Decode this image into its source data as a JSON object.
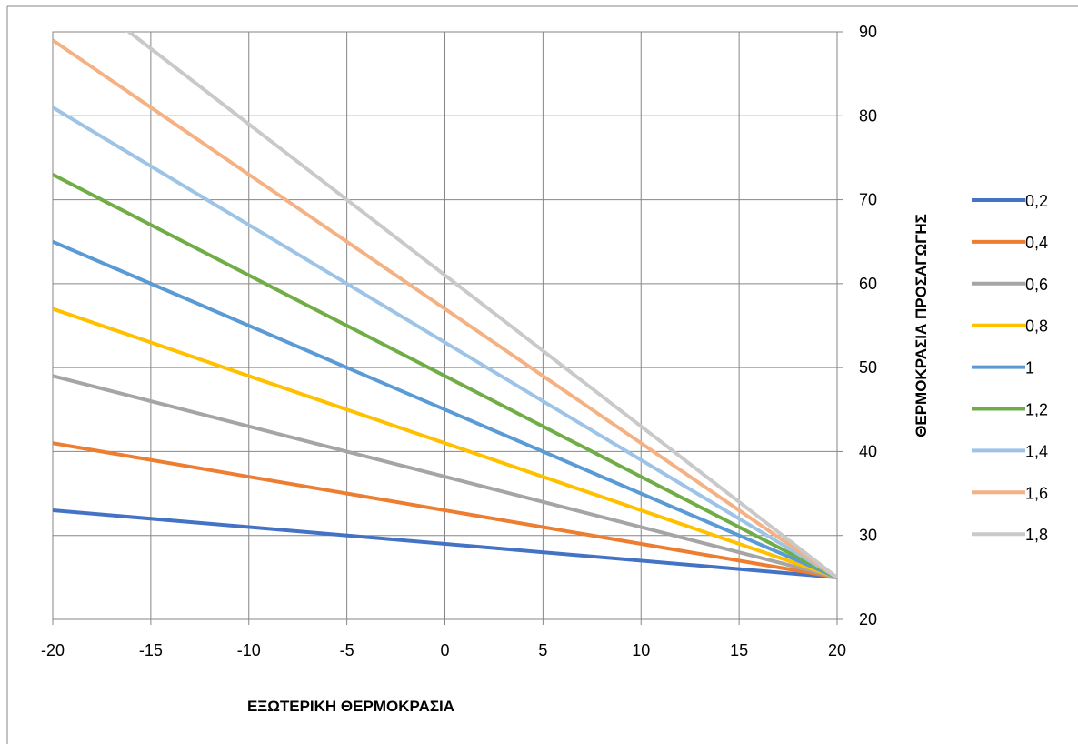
{
  "chart_data": {
    "type": "line",
    "title": "",
    "xlabel": "ΕΞΩΤΕΡΙΚΗ ΘΕΡΜΟΚΡΑΣΙΑ",
    "ylabel": "ΘΕΡΜΟΚΡΑΣΙΑ ΠΡΟΣΑΓΩΓΗΣ",
    "xlim": [
      -20,
      20
    ],
    "ylim": [
      20,
      90
    ],
    "xticks": [
      "-20",
      "-15",
      "-10",
      "-5",
      "0",
      "5",
      "10",
      "15",
      "20"
    ],
    "yticks": [
      "20",
      "30",
      "40",
      "50",
      "60",
      "70",
      "80",
      "90"
    ],
    "y_axis_side": "right",
    "grid": true,
    "legend_position": "right",
    "x": [
      -20,
      20
    ],
    "series": [
      {
        "name": "0,2",
        "color": "#4472c4",
        "values": [
          33,
          25
        ]
      },
      {
        "name": "0,4",
        "color": "#ed7d31",
        "values": [
          41,
          25
        ]
      },
      {
        "name": "0,6",
        "color": "#a5a5a5",
        "values": [
          49,
          25
        ]
      },
      {
        "name": "0,8",
        "color": "#ffc000",
        "values": [
          57,
          25
        ]
      },
      {
        "name": "1",
        "color": "#5b9bd5",
        "values": [
          65,
          25
        ]
      },
      {
        "name": "1,2",
        "color": "#70ad47",
        "values": [
          73,
          25
        ]
      },
      {
        "name": "1,4",
        "color": "#9dc3e6",
        "values": [
          81,
          25
        ]
      },
      {
        "name": "1,6",
        "color": "#f4b183",
        "values": [
          89,
          25
        ]
      },
      {
        "name": "1,8",
        "color": "#c9c9c9",
        "values": [
          97,
          25
        ]
      }
    ]
  }
}
